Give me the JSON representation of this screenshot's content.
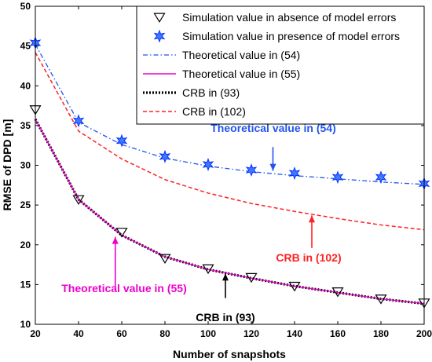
{
  "chart_data": {
    "type": "line",
    "xlabel": "Number of snapshots",
    "ylabel": "RMSE of DPD [m]",
    "xlim": [
      20,
      200
    ],
    "ylim": [
      10,
      50
    ],
    "xticks": [
      20,
      40,
      60,
      80,
      100,
      120,
      140,
      160,
      180,
      200
    ],
    "yticks": [
      10,
      15,
      20,
      25,
      30,
      35,
      40,
      45,
      50
    ],
    "grid": false,
    "legend_position": "top-right",
    "colors": {
      "sim_no_err": "#000000",
      "sim_err": "#0033ff",
      "theory54": "#2255ee",
      "theory55": "#ee00cc",
      "crb93": "#000000",
      "crb102": "#ff2020"
    },
    "series": [
      {
        "key": "sim_no_err",
        "name": "Simulation value in absence of model errors",
        "style": "marker-triangle",
        "x": [
          20,
          40,
          60,
          80,
          100,
          120,
          140,
          160,
          180,
          200
        ],
        "y": [
          37.0,
          25.7,
          21.6,
          18.3,
          17.0,
          15.9,
          14.8,
          14.1,
          13.2,
          12.7
        ]
      },
      {
        "key": "sim_err",
        "name": "Simulation value in presence of model errors",
        "style": "marker-star",
        "x": [
          20,
          40,
          60,
          80,
          100,
          120,
          140,
          160,
          180,
          200
        ],
        "y": [
          45.4,
          35.6,
          33.1,
          31.1,
          30.1,
          29.4,
          29.0,
          28.5,
          28.5,
          27.7
        ]
      },
      {
        "key": "theory54",
        "name": "Theoretical value in (54)",
        "style": "dashdot",
        "x": [
          20,
          40,
          60,
          80,
          100,
          120,
          140,
          160,
          180,
          200
        ],
        "y": [
          45.2,
          35.4,
          32.6,
          30.9,
          29.9,
          29.2,
          28.7,
          28.3,
          27.9,
          27.6
        ]
      },
      {
        "key": "theory55",
        "name": "Theoretical value in (55)",
        "style": "solid",
        "x": [
          20,
          40,
          60,
          80,
          100,
          120,
          140,
          160,
          180,
          200
        ],
        "y": [
          35.8,
          25.7,
          21.2,
          18.5,
          16.9,
          15.8,
          14.8,
          14.0,
          13.2,
          12.6
        ]
      },
      {
        "key": "crb93",
        "name": "CRB in (93)",
        "style": "dotted-thick",
        "x": [
          20,
          40,
          60,
          80,
          100,
          120,
          140,
          160,
          180,
          200
        ],
        "y": [
          35.8,
          25.7,
          21.2,
          18.5,
          16.9,
          15.8,
          14.8,
          14.0,
          13.2,
          12.6
        ]
      },
      {
        "key": "crb102",
        "name": "CRB in (102)",
        "style": "dashed",
        "x": [
          20,
          40,
          60,
          80,
          100,
          120,
          140,
          160,
          180,
          200
        ],
        "y": [
          44.2,
          34.3,
          30.8,
          28.2,
          26.5,
          25.2,
          24.2,
          23.3,
          22.5,
          21.9
        ]
      }
    ],
    "annotations": [
      {
        "key": "theory54",
        "text": "Theoretical value in (54)",
        "color": "#2255ee",
        "arrow_x": 130,
        "arrow_from_y": 32.3,
        "arrow_to_y": 29.3
      },
      {
        "key": "crb102",
        "text": "CRB in (102)",
        "color": "#ff2020",
        "arrow_x": 148,
        "arrow_from_y": 19.6,
        "arrow_to_y": 23.7
      },
      {
        "key": "theory55",
        "text": "Theoretical value in (55)",
        "color": "#ee00cc",
        "arrow_x": 57,
        "arrow_from_y": 14.6,
        "arrow_to_y": 21.0
      },
      {
        "key": "crb93",
        "text": "CRB in (93)",
        "color": "#000000",
        "arrow_x": 108,
        "arrow_from_y": 13.3,
        "arrow_to_y": 16.4
      }
    ]
  }
}
